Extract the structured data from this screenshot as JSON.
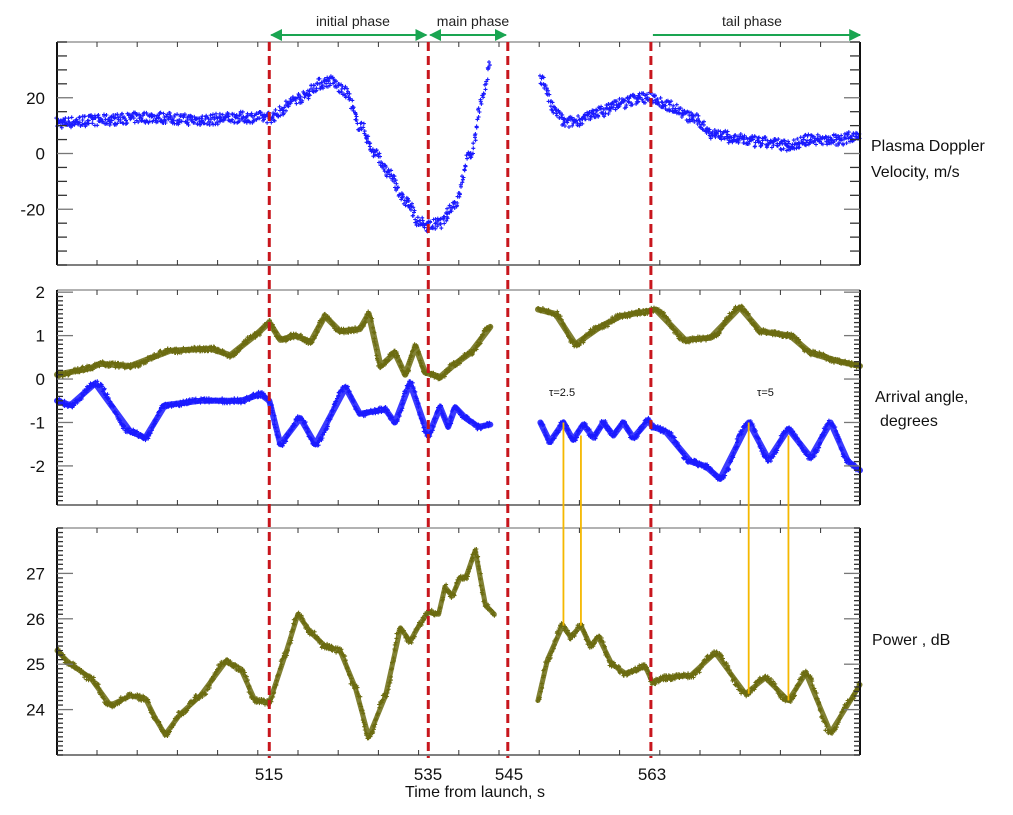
{
  "chart_data": {
    "type": "scatter",
    "xlabel": "Time from launch, s",
    "xlim": [
      488.3,
      589.3
    ],
    "x_tick_labels": [
      "515",
      "535",
      "545",
      "563"
    ],
    "phase_markers": [
      515,
      535,
      545,
      563
    ],
    "phases": [
      {
        "label": "initial phase",
        "from": 515,
        "to": 535
      },
      {
        "label": "main phase",
        "from": 535,
        "to": 545
      },
      {
        "label": "tail phase",
        "from": 563,
        "to": 589.3
      }
    ],
    "colors": {
      "velocity": "#1a1aff",
      "arrival_upper": "#6b6b10",
      "arrival_lower": "#1a1aff",
      "power": "#6b6b10",
      "marker": "#c8161d",
      "phase_arrow": "#1aa551",
      "period": "#f5b800"
    },
    "panels": [
      {
        "ylabel_line1": "Plasma Doppler",
        "ylabel_line2": "Velocity, m/s",
        "ylim": [
          -40,
          40
        ],
        "y_ticks": [
          20,
          0,
          -20
        ],
        "y_tick_labels": [
          "20",
          "0",
          "-20"
        ],
        "series": [
          {
            "name": "velocity",
            "points": [
              [
                488.3,
                11
              ],
              [
                493.7,
                12
              ],
              [
                500,
                13
              ],
              [
                506.3,
                12
              ],
              [
                511.4,
                13
              ],
              [
                515,
                13
              ],
              [
                518.9,
                20
              ],
              [
                521.4,
                25
              ],
              [
                522.7,
                26
              ],
              [
                524.6,
                22
              ],
              [
                526.4,
                10
              ],
              [
                528.3,
                0
              ],
              [
                530.2,
                -8
              ],
              [
                532.1,
                -17
              ],
              [
                534,
                -25
              ],
              [
                535,
                -26
              ],
              [
                536.5,
                -25
              ],
              [
                538.4,
                -18
              ],
              [
                540.3,
                0
              ],
              [
                541.9,
                20
              ],
              [
                542.8,
                33
              ],
              null,
              [
                549.1,
                27
              ],
              [
                551,
                15
              ],
              [
                552.2,
                11
              ],
              [
                554.1,
                12
              ],
              [
                556.6,
                15
              ],
              [
                559.2,
                18
              ],
              [
                561.7,
                20
              ],
              [
                563.2,
                20
              ],
              [
                565.4,
                17
              ],
              [
                568,
                13
              ],
              [
                571.1,
                7
              ],
              [
                574.2,
                5
              ],
              [
                576.8,
                4
              ],
              [
                580.5,
                3
              ],
              [
                583.1,
                5
              ],
              [
                586.8,
                5
              ],
              [
                589.3,
                7
              ]
            ]
          }
        ]
      },
      {
        "ylabel_line1": "Arrival angle,",
        "ylabel_line2": "degrees",
        "ylim": [
          -2.9,
          2.05
        ],
        "y_ticks": [
          2,
          1,
          0,
          -1,
          -2
        ],
        "y_tick_labels": [
          "2",
          "1",
          "0",
          "-1",
          "-2"
        ],
        "annotations": [
          {
            "text": "τ=2.5",
            "x": 549.5,
            "y": -0.25
          },
          {
            "text": "τ=5",
            "x": 576.0,
            "y": -0.25
          }
        ],
        "series": [
          {
            "name": "arrival_upper",
            "points": [
              [
                488.3,
                0.1
              ],
              [
                492.5,
                0.25
              ],
              [
                493.7,
                0.35
              ],
              [
                497.5,
                0.3
              ],
              [
                502.5,
                0.65
              ],
              [
                507.6,
                0.7
              ],
              [
                510.1,
                0.55
              ],
              [
                513.2,
                1.0
              ],
              [
                515,
                1.3
              ],
              [
                516.4,
                0.9
              ],
              [
                518.3,
                1.0
              ],
              [
                520.2,
                0.85
              ],
              [
                522,
                1.45
              ],
              [
                523.9,
                1.1
              ],
              [
                526.4,
                1.15
              ],
              [
                527.5,
                1.5
              ],
              [
                529,
                0.3
              ],
              [
                530.8,
                0.6
              ],
              [
                532.1,
                0.1
              ],
              [
                533.4,
                0.75
              ],
              [
                534.6,
                0.15
              ],
              [
                536.5,
                0.05
              ],
              [
                538.4,
                0.35
              ],
              [
                540.3,
                0.6
              ],
              [
                542.8,
                1.2
              ],
              null,
              [
                548.8,
                1.6
              ],
              [
                551,
                1.5
              ],
              [
                553.5,
                0.8
              ],
              [
                556.6,
                1.2
              ],
              [
                559.2,
                1.45
              ],
              [
                562.3,
                1.55
              ],
              [
                563.6,
                1.6
              ],
              [
                567.3,
                0.9
              ],
              [
                570.5,
                0.95
              ],
              [
                574.2,
                1.65
              ],
              [
                576.8,
                1.1
              ],
              [
                580.5,
                1.0
              ],
              [
                583.1,
                0.6
              ],
              [
                586.8,
                0.4
              ],
              [
                589.3,
                0.3
              ]
            ]
          },
          {
            "name": "arrival_lower",
            "points": [
              [
                488.3,
                -0.5
              ],
              [
                490,
                -0.6
              ],
              [
                493.1,
                -0.1
              ],
              [
                497.5,
                -1.2
              ],
              [
                499.4,
                -1.35
              ],
              [
                501.9,
                -0.6
              ],
              [
                506.3,
                -0.5
              ],
              [
                511.4,
                -0.5
              ],
              [
                513.9,
                -0.35
              ],
              [
                515,
                -0.5
              ],
              [
                516.4,
                -1.5
              ],
              [
                518.9,
                -0.9
              ],
              [
                520.8,
                -1.5
              ],
              [
                524.6,
                -0.2
              ],
              [
                526.4,
                -0.8
              ],
              [
                529.6,
                -0.7
              ],
              [
                530.8,
                -1.0
              ],
              [
                532.7,
                -0.1
              ],
              [
                535,
                -1.3
              ],
              [
                536.5,
                -0.65
              ],
              [
                537.5,
                -1.1
              ],
              [
                538.4,
                -0.65
              ],
              [
                539.7,
                -0.9
              ],
              [
                541.3,
                -1.1
              ],
              [
                542.8,
                -1.05
              ],
              null,
              [
                549.1,
                -1.0
              ],
              [
                550.3,
                -1.45
              ],
              [
                552,
                -1.0
              ],
              [
                553.2,
                -1.4
              ],
              [
                554.5,
                -1.05
              ],
              [
                555.8,
                -1.35
              ],
              [
                557,
                -1.0
              ],
              [
                558.3,
                -1.3
              ],
              [
                559.5,
                -1.0
              ],
              [
                560.8,
                -1.35
              ],
              [
                562.7,
                -0.95
              ],
              [
                563.2,
                -1.1
              ],
              [
                564.8,
                -1.2
              ],
              [
                568,
                -1.9
              ],
              [
                569.8,
                -2.0
              ],
              [
                571.7,
                -2.3
              ],
              [
                575.3,
                -1.0
              ],
              [
                577.8,
                -1.85
              ],
              [
                580.3,
                -1.15
              ],
              [
                583.1,
                -1.8
              ],
              [
                585.6,
                -1.0
              ],
              [
                587.8,
                -1.9
              ],
              [
                589.3,
                -2.1
              ]
            ]
          }
        ]
      },
      {
        "ylabel_line1": "Power , dB",
        "ylim": [
          23,
          28
        ],
        "y_ticks": [
          27,
          26,
          25,
          24
        ],
        "y_tick_labels": [
          "27",
          "26",
          "25",
          "24"
        ],
        "series": [
          {
            "name": "power",
            "points": [
              [
                488.3,
                25.3
              ],
              [
                490,
                25.0
              ],
              [
                492.5,
                24.7
              ],
              [
                495,
                24.1
              ],
              [
                497.5,
                24.3
              ],
              [
                499.4,
                24.25
              ],
              [
                500.7,
                23.8
              ],
              [
                501.9,
                23.45
              ],
              [
                503.8,
                23.9
              ],
              [
                506.3,
                24.3
              ],
              [
                509.5,
                25.05
              ],
              [
                511.4,
                24.9
              ],
              [
                513.2,
                24.2
              ],
              [
                515,
                24.15
              ],
              [
                517,
                25.2
              ],
              [
                518.6,
                26.1
              ],
              [
                520.2,
                25.7
              ],
              [
                522,
                25.4
              ],
              [
                523.9,
                25.3
              ],
              [
                525.8,
                24.5
              ],
              [
                527.5,
                23.4
              ],
              [
                529.6,
                24.3
              ],
              [
                531.5,
                25.8
              ],
              [
                532.7,
                25.5
              ],
              [
                534,
                25.9
              ],
              [
                535,
                26.15
              ],
              [
                536.3,
                26.1
              ],
              [
                537.1,
                26.7
              ],
              [
                538,
                26.5
              ],
              [
                539,
                26.9
              ],
              [
                539.7,
                26.9
              ],
              [
                540.9,
                27.5
              ],
              [
                542.2,
                26.3
              ],
              [
                543.3,
                26.1
              ],
              null,
              [
                548.8,
                24.2
              ],
              [
                550,
                25.1
              ],
              [
                551.9,
                25.85
              ],
              [
                552.9,
                25.6
              ],
              [
                554.2,
                25.85
              ],
              [
                555.4,
                25.4
              ],
              [
                556.4,
                25.6
              ],
              [
                558.1,
                25.0
              ],
              [
                559.8,
                24.8
              ],
              [
                562.3,
                24.95
              ],
              [
                563.2,
                24.6
              ],
              [
                564.8,
                24.7
              ],
              [
                568,
                24.75
              ],
              [
                571.1,
                25.25
              ],
              [
                574.9,
                24.35
              ],
              [
                577.4,
                24.7
              ],
              [
                580.3,
                24.2
              ],
              [
                582.5,
                24.8
              ],
              [
                585.6,
                23.5
              ],
              [
                588.1,
                24.2
              ],
              [
                589.3,
                24.55
              ]
            ]
          }
        ]
      }
    ],
    "period_lines": [
      {
        "t": 552.0,
        "from_angle": -1.0,
        "to_power": 25.85
      },
      {
        "t": 554.2,
        "from_angle": -1.3,
        "to_power": 25.85
      },
      {
        "t": 575.3,
        "from_angle": -1.0,
        "to_power": 24.35
      },
      {
        "t": 580.3,
        "from_angle": -1.3,
        "to_power": 24.2
      }
    ]
  }
}
